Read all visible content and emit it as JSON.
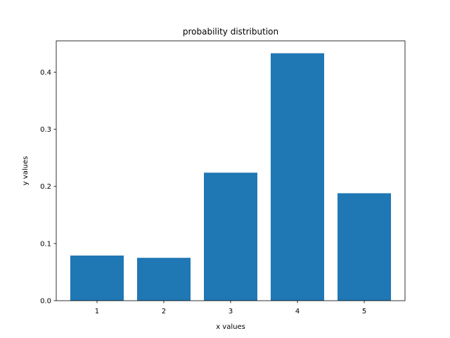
{
  "chart_data": {
    "type": "bar",
    "title": "probability distribution",
    "xlabel": "x values",
    "ylabel": "y values",
    "categories": [
      1,
      2,
      3,
      4,
      5
    ],
    "values": [
      0.079,
      0.075,
      0.224,
      0.433,
      0.188
    ],
    "xlim": [
      0.39,
      5.61
    ],
    "ylim": [
      0,
      0.4547
    ],
    "yticks": [
      0.0,
      0.1,
      0.2,
      0.3,
      0.4
    ],
    "ytick_labels": [
      "0.0",
      "0.1",
      "0.2",
      "0.3",
      "0.4"
    ],
    "xtick_labels": [
      "1",
      "2",
      "3",
      "4",
      "5"
    ],
    "bar_width": 0.8,
    "bar_color": "#1f77b4",
    "grid": false,
    "legend": "none"
  }
}
